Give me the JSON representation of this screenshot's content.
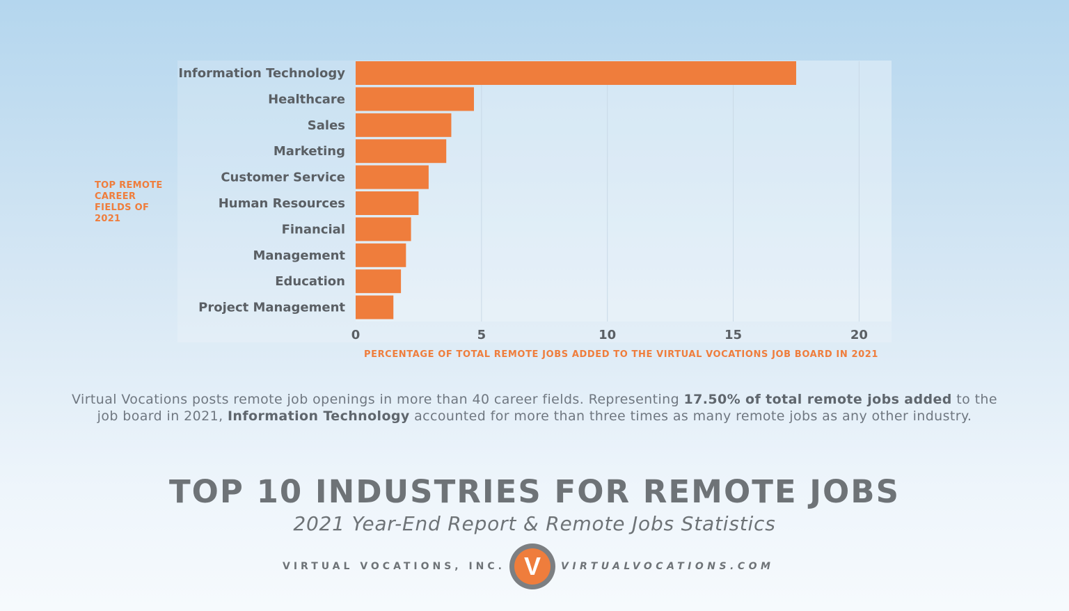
{
  "chart_data": {
    "type": "bar",
    "orientation": "horizontal",
    "categories": [
      "Information Technology",
      "Healthcare",
      "Sales",
      "Marketing",
      "Customer Service",
      "Human Resources",
      "Financial",
      "Management",
      "Education",
      "Project Management"
    ],
    "values": [
      17.5,
      4.7,
      3.8,
      3.6,
      2.9,
      2.5,
      2.2,
      2.0,
      1.8,
      1.5
    ],
    "xlabel": "PERCENTAGE OF TOTAL REMOTE JOBS ADDED TO THE VIRTUAL VOCATIONS JOB BOARD IN 2021",
    "ylabel": "TOP REMOTE CAREER FIELDS OF 2021",
    "xlim": [
      0,
      20
    ],
    "xticks": [
      "0",
      "5",
      "10",
      "15",
      "20"
    ],
    "grid": true,
    "bar_color": "#ef7d3c"
  },
  "description": {
    "part1": "Virtual Vocations posts remote job openings in more than 40 career fields. Representing ",
    "bold1": "17.50% of total remote jobs added",
    "part2": " to the job board in 2021, ",
    "bold2": "Information Technology",
    "part3": " accounted for more than three times as many remote jobs as any other industry."
  },
  "title": "TOP 10 INDUSTRIES FOR REMOTE JOBS",
  "subtitle": "2021 Year-End Report & Remote Jobs Statistics",
  "footer": {
    "company": "VIRTUAL VOCATIONS, INC.",
    "website": "VIRTUALVOCATIONS.COM",
    "logo_letter": "V"
  },
  "colors": {
    "accent": "#ef7d3c",
    "text": "#5f5f5f"
  }
}
